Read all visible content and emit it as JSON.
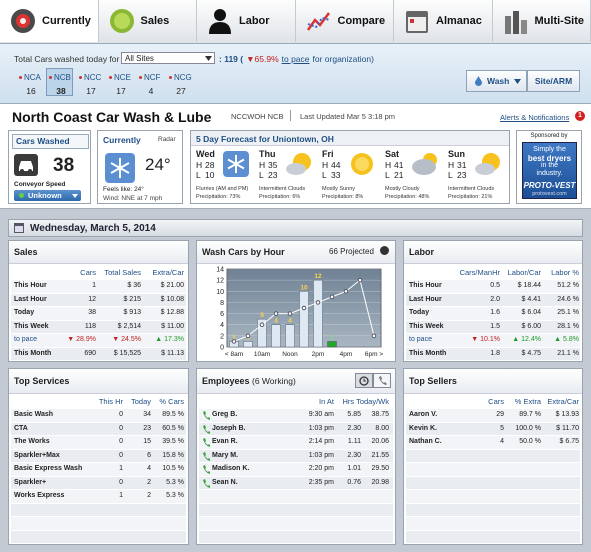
{
  "nav": {
    "tabs": [
      "Currently",
      "Sales",
      "Labor",
      "Compare",
      "Almanac",
      "Multi-Site"
    ],
    "active": 0
  },
  "summary": {
    "label": "Total Cars washed today for",
    "selector": "All Sites",
    "total": ": 119 (",
    "pace_change": "▼65.9%",
    "pace_link": "to pace",
    "pace_suffix": "for organization)"
  },
  "sites": [
    {
      "code": "NCA",
      "cars": 16
    },
    {
      "code": "NCB",
      "cars": 38
    },
    {
      "code": "NCC",
      "cars": 17
    },
    {
      "code": "NCE",
      "cars": 17
    },
    {
      "code": "NCF",
      "cars": 4
    },
    {
      "code": "NCG",
      "cars": 27
    }
  ],
  "selected_site": 1,
  "buttons": [
    "Wash",
    "Site/ARM"
  ],
  "header": {
    "title": "North Coast Car Wash & Lube",
    "site_code": "NCCWOH NCB",
    "updated": "Last Updated Mar 5 3:18 pm",
    "alerts": "Alerts & Notifications",
    "alert_count": 1
  },
  "cars_washed": {
    "title": "Cars Washed",
    "count": 38,
    "speed_label": "Conveyor Speed",
    "speed": "Unknown"
  },
  "currently": {
    "title": "Currently",
    "radar": "Radar",
    "temperature": "24°",
    "feels_like": "Feels like: 24°",
    "wind": "Wind: NNE at 7 mph"
  },
  "forecast": {
    "title": "5 Day Forecast for Uniontown, OH",
    "high_label": "H",
    "low_label": "L",
    "days": [
      {
        "day": "Wed",
        "high": 28,
        "low": 10,
        "icon": "snow",
        "condition": "Flurries (AM and PM)",
        "precipitation": "Precipitation: 73%"
      },
      {
        "day": "Thu",
        "high": 35,
        "low": 23,
        "icon": "partly",
        "condition": "Intermittent Clouds",
        "precipitation": "Precipitation: 6%"
      },
      {
        "day": "Fri",
        "high": 44,
        "low": 33,
        "icon": "sun",
        "condition": "Mostly Sunny",
        "precipitation": "Precipitation: 8%"
      },
      {
        "day": "Sat",
        "high": 41,
        "low": 21,
        "icon": "cloudy",
        "condition": "Mostly Cloudy",
        "precipitation": "Precipitation: 48%"
      },
      {
        "day": "Sun",
        "high": 31,
        "low": 23,
        "icon": "partly",
        "condition": "Intermittent Clouds",
        "precipitation": "Precipitation: 21%"
      }
    ]
  },
  "ad": {
    "label": "Sponsored by",
    "lines": [
      "Simply the",
      "best dryers",
      "in the",
      "industry."
    ],
    "brand": "PROTO-VEST",
    "url": "protovest.com"
  },
  "date": "Wednesday, March 5, 2014",
  "sales": {
    "title": "Sales",
    "columns": [
      "Cars",
      "Total Sales",
      "Extra/Car"
    ],
    "rows": [
      {
        "label": "This Hour",
        "cells": [
          "1",
          "$ 36",
          "$ 21.00"
        ]
      },
      {
        "label": "Last Hour",
        "cells": [
          "12",
          "$ 215",
          "$ 10.08"
        ]
      },
      {
        "label": "Today",
        "cells": [
          "38",
          "$ 913",
          "$ 12.88"
        ]
      },
      {
        "label": "This Week",
        "cells": [
          "118",
          "$ 2,514",
          "$ 11.00"
        ]
      },
      {
        "label": "to pace",
        "cells": [
          "▼ 28.9%",
          "▼ 24.5%",
          "▲ 17.3%"
        ]
      },
      {
        "label": "This Month",
        "cells": [
          "690",
          "$ 15,525",
          "$ 11.13"
        ]
      }
    ]
  },
  "chart_data": {
    "type": "bar",
    "title": "Wash Cars by Hour",
    "projected": "66 Projected",
    "categories": [
      "< 8am",
      null,
      "10am",
      null,
      "Noon",
      null,
      "2pm",
      null,
      "4pm",
      null,
      "6pm >"
    ],
    "series": [
      {
        "type": "bar",
        "color": "#dde8f2",
        "highlight_color": "#22a52a",
        "highlight_index": 7,
        "values": [
          1,
          1,
          5,
          4,
          4,
          10,
          12,
          1,
          null,
          null,
          null
        ]
      },
      {
        "type": "line",
        "color": "#ffffff",
        "values": [
          1,
          2,
          4,
          6,
          6,
          7,
          8,
          9,
          10,
          12,
          2
        ]
      }
    ],
    "ylim": [
      0,
      14
    ],
    "yticks": [
      0,
      2,
      4,
      6,
      8,
      10,
      12,
      14
    ],
    "grid": true
  },
  "labor": {
    "title": "Labor",
    "columns": [
      "Cars/ManHr",
      "Labor/Car",
      "Labor %"
    ],
    "rows": [
      {
        "label": "This Hour",
        "cells": [
          "0.5",
          "$ 18.44",
          "51.2 %"
        ]
      },
      {
        "label": "Last Hour",
        "cells": [
          "2.0",
          "$ 4.41",
          "24.6 %"
        ]
      },
      {
        "label": "Today",
        "cells": [
          "1.6",
          "$ 6.04",
          "25.1 %"
        ]
      },
      {
        "label": "This Week",
        "cells": [
          "1.5",
          "$ 6.00",
          "28.1 %"
        ]
      },
      {
        "label": "to pace",
        "cells": [
          "▼ 10.1%",
          "▲ 12.4%",
          "▲ 5.8%"
        ]
      },
      {
        "label": "This Month",
        "cells": [
          "1.8",
          "$ 4.75",
          "21.1 %"
        ]
      }
    ]
  },
  "services": {
    "title": "Top Services",
    "columns": [
      "This Hr",
      "Today",
      "% Cars"
    ],
    "rows": [
      {
        "label": "Basic Wash",
        "cells": [
          "0",
          "34",
          "89.5 %"
        ]
      },
      {
        "label": "CTA",
        "cells": [
          "0",
          "23",
          "60.5 %"
        ]
      },
      {
        "label": "The Works",
        "cells": [
          "0",
          "15",
          "39.5 %"
        ]
      },
      {
        "label": "Sparkler+Max",
        "cells": [
          "0",
          "6",
          "15.8 %"
        ]
      },
      {
        "label": "Basic Express Wash",
        "cells": [
          "1",
          "4",
          "10.5 %"
        ]
      },
      {
        "label": "Sparkler+",
        "cells": [
          "0",
          "2",
          "5.3 %"
        ]
      },
      {
        "label": "Works Express",
        "cells": [
          "1",
          "2",
          "5.3 %"
        ]
      }
    ]
  },
  "employees": {
    "title": "Employees",
    "subtitle": "(6 Working)",
    "columns": [
      "In At",
      "Hrs Today/Wk"
    ],
    "rows": [
      {
        "label": "Greg B.",
        "cells": [
          "9:30 am",
          "5.85",
          "38.75"
        ]
      },
      {
        "label": "Joseph B.",
        "cells": [
          "1:03 pm",
          "2.30",
          "8.00"
        ]
      },
      {
        "label": "Evan R.",
        "cells": [
          "2:14 pm",
          "1.11",
          "20.06"
        ]
      },
      {
        "label": "Mary M.",
        "cells": [
          "1:03 pm",
          "2.30",
          "21.55"
        ]
      },
      {
        "label": "Madison K.",
        "cells": [
          "2:20 pm",
          "1.01",
          "29.50"
        ]
      },
      {
        "label": "Sean N.",
        "cells": [
          "2:35 pm",
          "0.76",
          "20.98"
        ]
      }
    ]
  },
  "sellers": {
    "title": "Top Sellers",
    "columns": [
      "Cars",
      "% Extra",
      "Extra/Car"
    ],
    "rows": [
      {
        "label": "Aaron V.",
        "cells": [
          "29",
          "89.7 %",
          "$ 13.93"
        ]
      },
      {
        "label": "Kevin K.",
        "cells": [
          "5",
          "100.0 %",
          "$ 11.70"
        ]
      },
      {
        "label": "Nathan C.",
        "cells": [
          "4",
          "50.0 %",
          "$ 6.75"
        ]
      }
    ]
  }
}
